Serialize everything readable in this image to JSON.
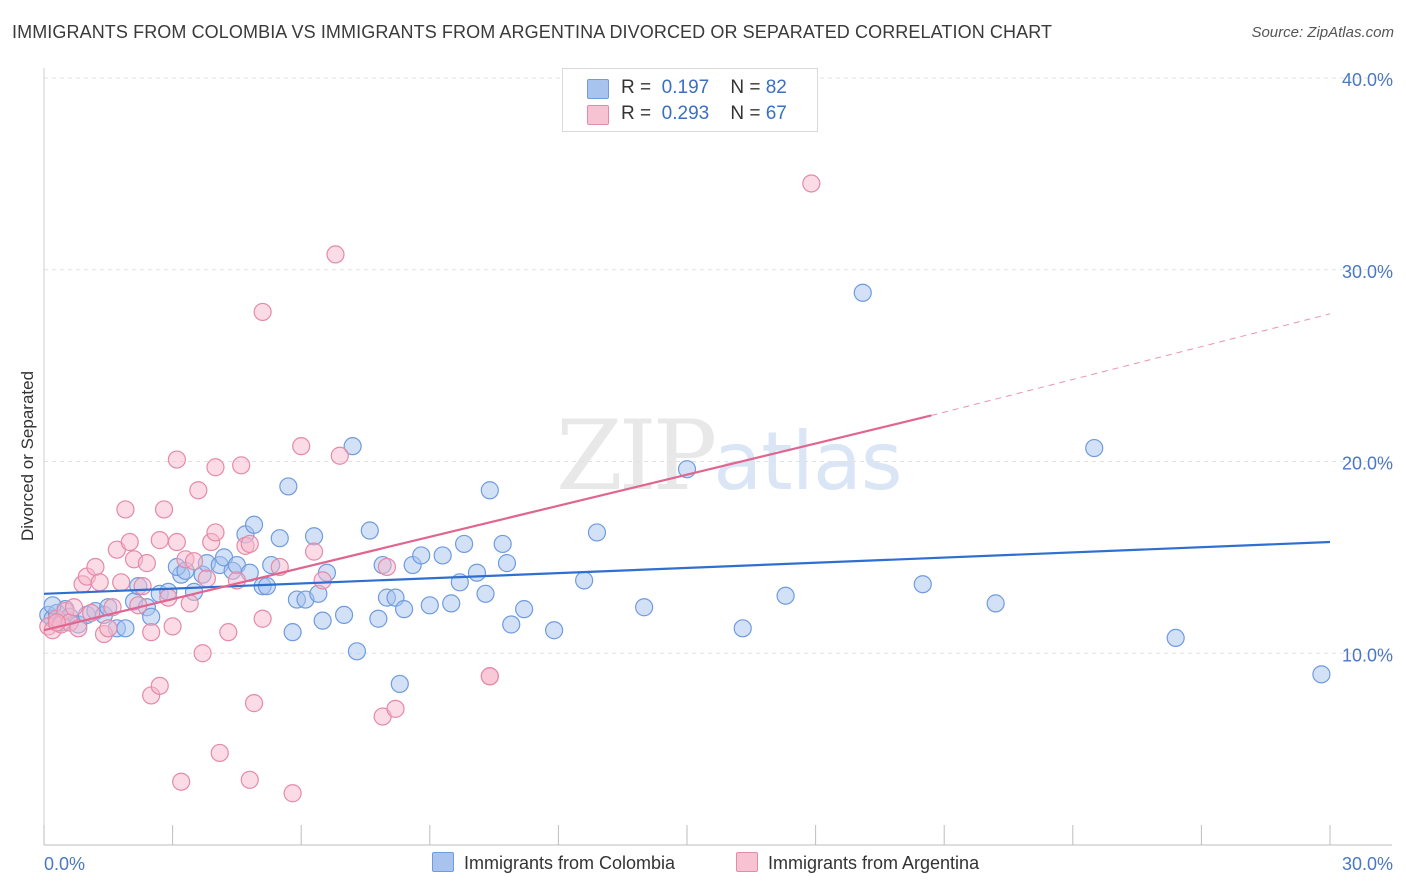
{
  "title": "IMMIGRANTS FROM COLOMBIA VS IMMIGRANTS FROM ARGENTINA DIVORCED OR SEPARATED CORRELATION CHART",
  "source": "Source: ZipAtlas.com",
  "watermark": {
    "a": "ZIP",
    "b": "atlas"
  },
  "legend": {
    "r_label": "R =",
    "n_label": "N =",
    "series": [
      {
        "r": "0.197",
        "n": "82"
      },
      {
        "r": "0.293",
        "n": "67"
      }
    ]
  },
  "colors": {
    "colombia_fill": "#a8c4ee",
    "colombia_stroke": "#6f9be0",
    "colombia_line": "#2f6fd0",
    "argentina_fill": "#f7b8cc",
    "argentina_stroke": "#e58aa8",
    "argentina_line": "#e0668f",
    "tick_text": "#4a78c2",
    "grid": "#e2e2e2"
  },
  "chart_data": {
    "type": "scatter",
    "title": "IMMIGRANTS FROM COLOMBIA VS IMMIGRANTS FROM ARGENTINA DIVORCED OR SEPARATED CORRELATION CHART",
    "xlabel": "",
    "ylabel": "Divorced or Separated",
    "xlim": [
      0,
      30
    ],
    "ylim": [
      0,
      40
    ],
    "x_ticks": [
      "0.0%",
      "30.0%"
    ],
    "y_ticks": [
      {
        "value": 10,
        "label": "10.0%"
      },
      {
        "value": 20,
        "label": "20.0%"
      },
      {
        "value": 30,
        "label": "30.0%"
      },
      {
        "value": 40,
        "label": "40.0%"
      }
    ],
    "grid": true,
    "legend_position": "top-center",
    "series": [
      {
        "name": "Immigrants from Colombia",
        "r": 0.197,
        "n": 82,
        "trend": {
          "x0": 0,
          "y0": 13.1,
          "x1": 30,
          "y1": 15.8
        },
        "points": [
          [
            0.1,
            12.0
          ],
          [
            0.2,
            11.8
          ],
          [
            0.3,
            12.1
          ],
          [
            0.4,
            11.6
          ],
          [
            0.5,
            12.3
          ],
          [
            0.6,
            11.9
          ],
          [
            0.8,
            11.5
          ],
          [
            1.0,
            12.0
          ],
          [
            1.2,
            12.2
          ],
          [
            1.4,
            12.0
          ],
          [
            1.5,
            12.4
          ],
          [
            1.7,
            11.3
          ],
          [
            1.9,
            11.3
          ],
          [
            2.1,
            12.7
          ],
          [
            2.2,
            13.5
          ],
          [
            2.4,
            12.4
          ],
          [
            2.5,
            11.9
          ],
          [
            2.7,
            13.1
          ],
          [
            2.9,
            13.2
          ],
          [
            3.2,
            14.1
          ],
          [
            3.1,
            14.5
          ],
          [
            3.3,
            14.3
          ],
          [
            3.5,
            13.2
          ],
          [
            3.7,
            14.1
          ],
          [
            3.8,
            14.7
          ],
          [
            4.1,
            14.6
          ],
          [
            4.2,
            15.0
          ],
          [
            4.4,
            14.3
          ],
          [
            4.5,
            14.6
          ],
          [
            4.7,
            16.2
          ],
          [
            4.8,
            14.2
          ],
          [
            4.9,
            16.7
          ],
          [
            5.1,
            13.5
          ],
          [
            5.2,
            13.5
          ],
          [
            5.3,
            14.6
          ],
          [
            5.5,
            16.0
          ],
          [
            5.7,
            18.7
          ],
          [
            5.8,
            11.1
          ],
          [
            5.9,
            12.8
          ],
          [
            6.1,
            12.8
          ],
          [
            6.3,
            16.1
          ],
          [
            6.4,
            13.1
          ],
          [
            6.5,
            11.7
          ],
          [
            6.6,
            14.2
          ],
          [
            7.0,
            12.0
          ],
          [
            7.2,
            20.8
          ],
          [
            7.3,
            10.1
          ],
          [
            7.6,
            16.4
          ],
          [
            7.8,
            11.8
          ],
          [
            7.9,
            14.6
          ],
          [
            8.0,
            12.9
          ],
          [
            8.2,
            12.9
          ],
          [
            8.3,
            8.4
          ],
          [
            8.4,
            12.3
          ],
          [
            8.6,
            14.6
          ],
          [
            8.8,
            15.1
          ],
          [
            9.0,
            12.5
          ],
          [
            9.3,
            15.1
          ],
          [
            9.5,
            12.6
          ],
          [
            9.7,
            13.7
          ],
          [
            9.8,
            15.7
          ],
          [
            10.1,
            14.2
          ],
          [
            10.3,
            13.1
          ],
          [
            10.4,
            18.5
          ],
          [
            10.7,
            15.7
          ],
          [
            10.8,
            14.7
          ],
          [
            10.9,
            11.5
          ],
          [
            11.2,
            12.3
          ],
          [
            11.9,
            11.2
          ],
          [
            12.6,
            13.8
          ],
          [
            12.9,
            16.3
          ],
          [
            14.0,
            12.4
          ],
          [
            15.0,
            19.6
          ],
          [
            16.3,
            11.3
          ],
          [
            17.3,
            13.0
          ],
          [
            19.1,
            28.8
          ],
          [
            20.5,
            13.6
          ],
          [
            22.2,
            12.6
          ],
          [
            24.5,
            20.7
          ],
          [
            26.4,
            10.8
          ],
          [
            29.8,
            8.9
          ],
          [
            0.2,
            12.5
          ]
        ]
      },
      {
        "name": "Immigrants from Argentina",
        "r": 0.293,
        "n": 67,
        "trend": {
          "x0": 0,
          "y0": 11.2,
          "x1": 20.7,
          "y1": 22.4
        },
        "trend_extension": {
          "x0": 20.7,
          "y0": 22.4,
          "x1": 30,
          "y1": 27.7
        },
        "points": [
          [
            0.1,
            11.4
          ],
          [
            0.2,
            11.2
          ],
          [
            0.3,
            11.8
          ],
          [
            0.4,
            11.5
          ],
          [
            0.5,
            12.2
          ],
          [
            0.6,
            11.6
          ],
          [
            0.7,
            12.4
          ],
          [
            0.8,
            11.3
          ],
          [
            0.9,
            13.6
          ],
          [
            1.0,
            14.0
          ],
          [
            1.1,
            12.1
          ],
          [
            1.2,
            14.5
          ],
          [
            1.3,
            13.7
          ],
          [
            1.4,
            11.0
          ],
          [
            1.5,
            11.3
          ],
          [
            1.6,
            12.4
          ],
          [
            1.7,
            15.4
          ],
          [
            1.8,
            13.7
          ],
          [
            1.9,
            17.5
          ],
          [
            2.0,
            15.8
          ],
          [
            2.1,
            14.9
          ],
          [
            2.2,
            12.5
          ],
          [
            2.3,
            13.5
          ],
          [
            2.4,
            14.7
          ],
          [
            2.5,
            11.1
          ],
          [
            2.5,
            7.8
          ],
          [
            2.7,
            15.9
          ],
          [
            2.7,
            8.3
          ],
          [
            2.8,
            17.5
          ],
          [
            2.9,
            12.9
          ],
          [
            3.0,
            11.4
          ],
          [
            3.1,
            15.8
          ],
          [
            3.1,
            20.1
          ],
          [
            3.2,
            3.3
          ],
          [
            3.3,
            14.9
          ],
          [
            3.4,
            12.6
          ],
          [
            3.5,
            14.8
          ],
          [
            3.6,
            18.5
          ],
          [
            3.7,
            10.0
          ],
          [
            3.8,
            13.9
          ],
          [
            3.9,
            15.8
          ],
          [
            4.0,
            16.3
          ],
          [
            4.0,
            19.7
          ],
          [
            4.1,
            4.8
          ],
          [
            4.3,
            11.1
          ],
          [
            4.5,
            13.8
          ],
          [
            4.6,
            19.8
          ],
          [
            4.7,
            15.6
          ],
          [
            4.8,
            15.7
          ],
          [
            4.8,
            3.4
          ],
          [
            4.9,
            7.4
          ],
          [
            5.1,
            11.8
          ],
          [
            5.1,
            27.8
          ],
          [
            5.5,
            14.5
          ],
          [
            5.8,
            2.7
          ],
          [
            6.0,
            20.8
          ],
          [
            6.3,
            15.3
          ],
          [
            6.5,
            13.8
          ],
          [
            6.8,
            30.8
          ],
          [
            6.9,
            20.3
          ],
          [
            7.9,
            6.7
          ],
          [
            8.0,
            14.5
          ],
          [
            8.2,
            7.1
          ],
          [
            10.4,
            8.8
          ],
          [
            10.4,
            8.8
          ],
          [
            17.9,
            34.5
          ],
          [
            0.3,
            11.6
          ]
        ]
      }
    ]
  }
}
